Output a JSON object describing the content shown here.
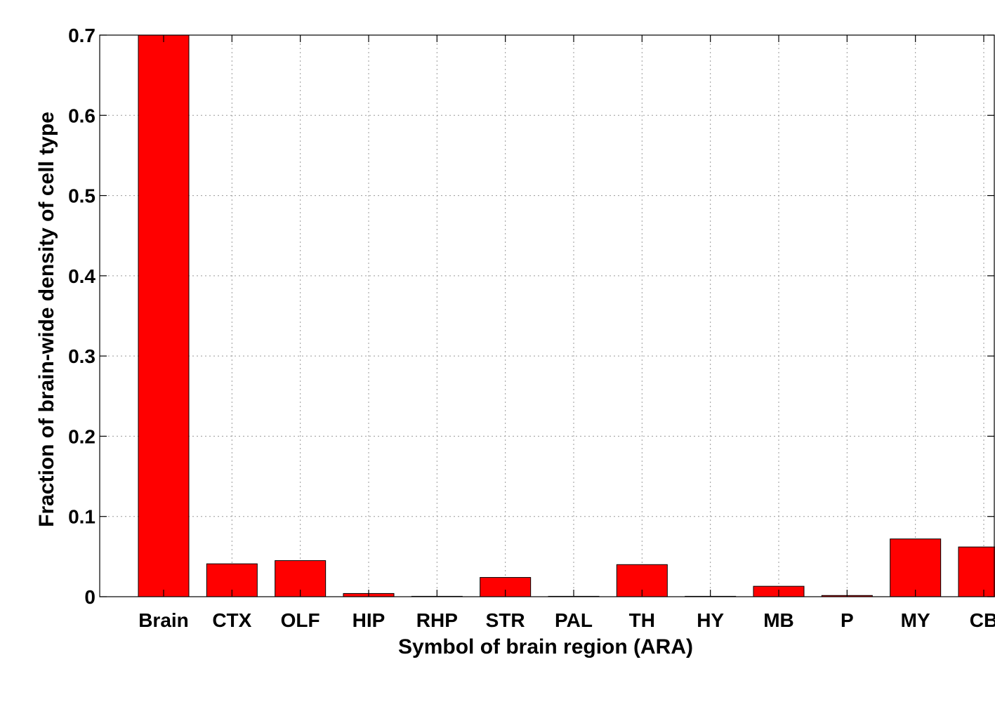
{
  "chart_data": {
    "type": "bar",
    "title": "",
    "xlabel": "Symbol of brain region (ARA)",
    "ylabel": "Fraction of brain-wide density of cell type",
    "categories": [
      "Brain",
      "CTX",
      "OLF",
      "HIP",
      "RHP",
      "STR",
      "PAL",
      "TH",
      "HY",
      "MB",
      "P",
      "MY",
      "CB"
    ],
    "values": [
      0.7,
      0.041,
      0.045,
      0.004,
      0.0005,
      0.024,
      0.0005,
      0.04,
      0.0005,
      0.013,
      0.0015,
      0.072,
      0.062
    ],
    "ylim": [
      0,
      0.7
    ],
    "yticks": [
      "0",
      "0.1",
      "0.2",
      "0.3",
      "0.4",
      "0.5",
      "0.6",
      "0.7"
    ],
    "grid": true,
    "bar_color": "#ff0000",
    "legend": "none"
  }
}
